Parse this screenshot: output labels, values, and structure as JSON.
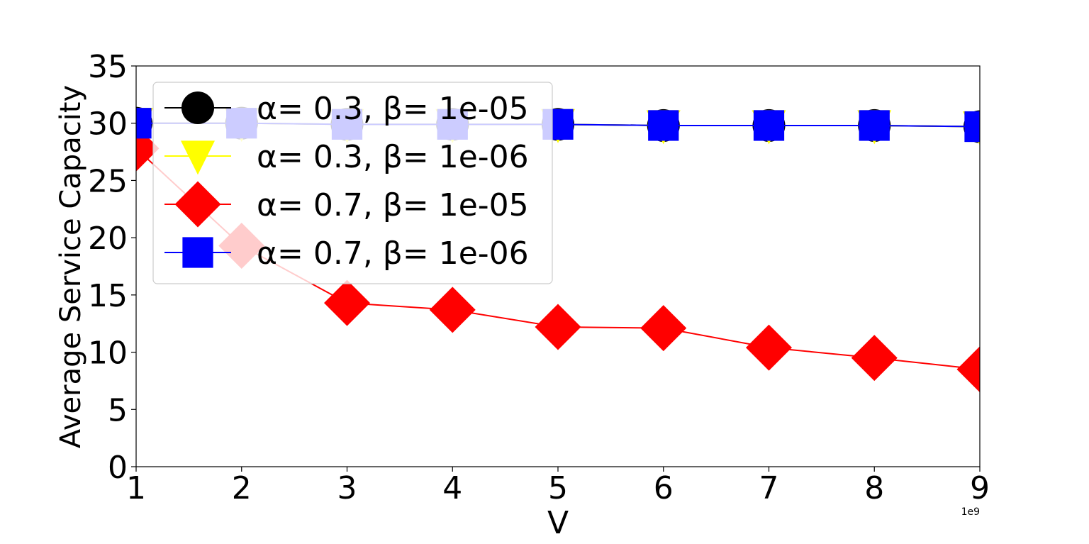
{
  "chart_data": {
    "type": "line",
    "xlabel": "V",
    "ylabel": "Average Service Capacity",
    "x_scale_label": "1e9",
    "xlim": [
      1,
      9
    ],
    "ylim": [
      0,
      35
    ],
    "x_ticks": [
      "1",
      "2",
      "3",
      "4",
      "5",
      "6",
      "7",
      "8",
      "9"
    ],
    "y_ticks": [
      "0",
      "5",
      "10",
      "15",
      "20",
      "25",
      "30",
      "35"
    ],
    "x": [
      1,
      2,
      3,
      4,
      5,
      6,
      7,
      8,
      9
    ],
    "grid": false,
    "legend_position": "upper-left",
    "series": [
      {
        "name": "α= 0.3, β= 1e-05",
        "color": "#000000",
        "marker": "circle",
        "values": [
          30.0,
          30.0,
          29.9,
          29.9,
          29.9,
          29.8,
          29.8,
          29.8,
          29.7
        ]
      },
      {
        "name": "α= 0.3, β= 1e-06",
        "color": "#ffff00",
        "marker": "triangle-down",
        "values": [
          30.0,
          30.0,
          29.9,
          29.9,
          29.9,
          29.8,
          29.8,
          29.8,
          29.7
        ]
      },
      {
        "name": "α= 0.7, β= 1e-05",
        "color": "#ff0000",
        "marker": "diamond",
        "values": [
          27.8,
          19.3,
          14.3,
          13.7,
          12.2,
          12.1,
          10.4,
          9.5,
          8.5
        ]
      },
      {
        "name": "α= 0.7, β= 1e-06",
        "color": "#0000ff",
        "marker": "square",
        "values": [
          30.0,
          30.0,
          29.9,
          29.9,
          29.9,
          29.8,
          29.8,
          29.8,
          29.7
        ]
      }
    ]
  }
}
